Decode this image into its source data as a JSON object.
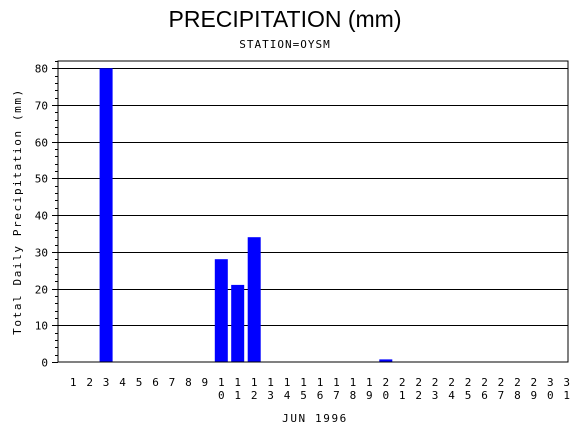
{
  "chart_data": {
    "type": "bar",
    "title": "PRECIPITATION (mm)",
    "subtitle": "STATION=OYSM",
    "xlabel": "JUN 1996",
    "ylabel": "Total Daily Precipitation (mm)",
    "categories": [
      "1",
      "2",
      "3",
      "4",
      "5",
      "6",
      "7",
      "8",
      "9",
      "10",
      "11",
      "12",
      "13",
      "14",
      "15",
      "16",
      "17",
      "18",
      "19",
      "20",
      "21",
      "22",
      "23",
      "24",
      "25",
      "26",
      "27",
      "28",
      "29",
      "30",
      "31"
    ],
    "values": [
      0,
      0,
      80,
      0,
      0,
      0,
      0,
      0,
      0,
      28,
      21,
      34,
      0,
      0,
      0,
      0,
      0,
      0,
      0,
      0.7,
      0,
      0,
      0,
      0,
      0,
      0,
      0,
      0,
      0,
      0,
      0
    ],
    "ylim": [
      0,
      82
    ],
    "yticks": [
      0,
      10,
      20,
      30,
      40,
      50,
      60,
      70,
      80
    ],
    "bar_color": "#0000ff",
    "grid": "horizontal"
  }
}
